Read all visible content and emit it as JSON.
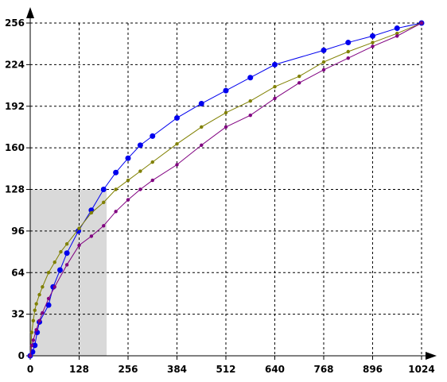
{
  "chart_data": {
    "type": "line",
    "title": "",
    "xlabel": "",
    "ylabel": "",
    "xlim": [
      0,
      1024
    ],
    "ylim": [
      0,
      256
    ],
    "grid": true,
    "x_ticks": [
      0,
      128,
      256,
      384,
      512,
      640,
      768,
      896,
      1024
    ],
    "y_ticks": [
      0,
      32,
      64,
      96,
      128,
      160,
      192,
      224,
      256
    ],
    "highlight_region": {
      "x": [
        0,
        200
      ],
      "y": [
        0,
        128
      ],
      "color": "#d9d9d9"
    },
    "series": [
      {
        "color": "#0000ee",
        "marker_size": 3.5,
        "points": [
          [
            0,
            0
          ],
          [
            6,
            3
          ],
          [
            12,
            8
          ],
          [
            18,
            18
          ],
          [
            24,
            26
          ],
          [
            48,
            39
          ],
          [
            60,
            53
          ],
          [
            78,
            66
          ],
          [
            96,
            79
          ],
          [
            126,
            96
          ],
          [
            160,
            112
          ],
          [
            192,
            128
          ],
          [
            224,
            141
          ],
          [
            256,
            152
          ],
          [
            288,
            162
          ],
          [
            320,
            169
          ],
          [
            384,
            183
          ],
          [
            448,
            194
          ],
          [
            512,
            204
          ],
          [
            576,
            214
          ],
          [
            640,
            224
          ],
          [
            768,
            235
          ],
          [
            832,
            241
          ],
          [
            896,
            246
          ],
          [
            960,
            252
          ],
          [
            1024,
            256
          ]
        ]
      },
      {
        "color": "#808000",
        "marker_size": 2.2,
        "points": [
          [
            0,
            0
          ],
          [
            4,
            18
          ],
          [
            8,
            27
          ],
          [
            12,
            35
          ],
          [
            16,
            40
          ],
          [
            24,
            47
          ],
          [
            32,
            53
          ],
          [
            48,
            64
          ],
          [
            64,
            72
          ],
          [
            80,
            80
          ],
          [
            96,
            86
          ],
          [
            128,
            98
          ],
          [
            160,
            110
          ],
          [
            192,
            118
          ],
          [
            224,
            128
          ],
          [
            256,
            135
          ],
          [
            288,
            142
          ],
          [
            320,
            149
          ],
          [
            384,
            163
          ],
          [
            448,
            176
          ],
          [
            512,
            187
          ],
          [
            576,
            196
          ],
          [
            640,
            207
          ],
          [
            704,
            215
          ],
          [
            768,
            226
          ],
          [
            832,
            234
          ],
          [
            896,
            241
          ],
          [
            960,
            248
          ],
          [
            1024,
            256
          ]
        ]
      },
      {
        "color": "#800080",
        "marker_size": 2.2,
        "points": [
          [
            0,
            0
          ],
          [
            4,
            8
          ],
          [
            8,
            12
          ],
          [
            16,
            20
          ],
          [
            24,
            27
          ],
          [
            32,
            33
          ],
          [
            48,
            44
          ],
          [
            64,
            53
          ],
          [
            96,
            70
          ],
          [
            128,
            85
          ],
          [
            160,
            92
          ],
          [
            192,
            100
          ],
          [
            224,
            111
          ],
          [
            256,
            120
          ],
          [
            288,
            128
          ],
          [
            320,
            135
          ],
          [
            384,
            147
          ],
          [
            448,
            162
          ],
          [
            512,
            176
          ],
          [
            576,
            185
          ],
          [
            640,
            198
          ],
          [
            704,
            210
          ],
          [
            768,
            220
          ],
          [
            832,
            229
          ],
          [
            896,
            238
          ],
          [
            960,
            246
          ],
          [
            1024,
            256
          ]
        ]
      }
    ]
  }
}
